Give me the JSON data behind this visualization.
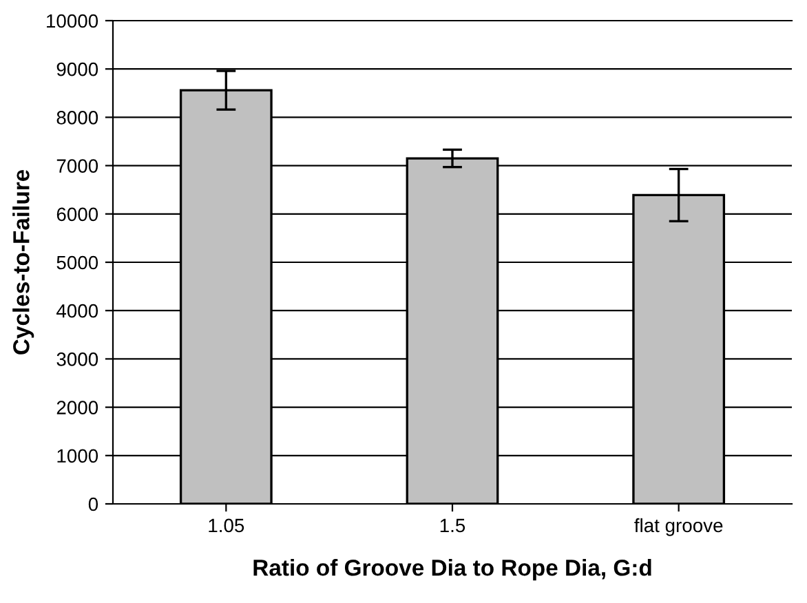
{
  "chart_data": {
    "type": "bar",
    "xlabel": "Ratio of Groove Dia to Rope Dia, G:d",
    "ylabel": "Cycles-to-Failure",
    "categories": [
      "1.05",
      "1.5",
      "flat groove"
    ],
    "values": [
      8560,
      7150,
      6390
    ],
    "errors": [
      400,
      180,
      540
    ],
    "color": "#c0c0c0",
    "ylim": [
      0,
      10000
    ],
    "yticks": [
      0,
      1000,
      2000,
      3000,
      4000,
      5000,
      6000,
      7000,
      8000,
      9000,
      10000
    ],
    "grid": "y"
  }
}
